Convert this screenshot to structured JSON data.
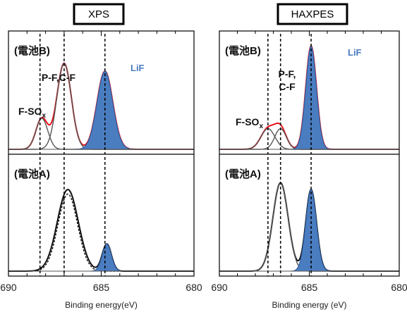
{
  "chart_data": [
    {
      "type": "line",
      "title": "XPS",
      "xlabel": "Binding energy(eV)",
      "x_reversed": true,
      "xlim": [
        690,
        680
      ],
      "xticks": [
        "690",
        "685",
        "680"
      ],
      "panels": [
        {
          "label": "(電池B)",
          "annotations": [
            {
              "text": "P-F,C-F",
              "x": 687.0
            },
            {
              "text": "F-SO",
              "sub": "x",
              "x": 688.0
            },
            {
              "text": "LiF",
              "x": 684.6
            }
          ],
          "series": [
            {
              "kind": "envelope",
              "color": "#e8141b",
              "peaks": [
                [
                  688.2,
                  0.27,
                  0.45
                ],
                [
                  687.0,
                  0.75,
                  0.55
                ],
                [
                  684.8,
                  0.68,
                  0.6
                ]
              ]
            },
            {
              "kind": "component",
              "color": "#555555",
              "peak": [
                688.2,
                0.27,
                0.45
              ]
            },
            {
              "kind": "component",
              "color": "#555555",
              "peak": [
                687.0,
                0.75,
                0.55
              ]
            },
            {
              "kind": "filled",
              "color": "#4a7cc0",
              "peak": [
                684.8,
                0.68,
                0.6
              ]
            }
          ],
          "markers": [
            688.3,
            687.0,
            684.8
          ]
        },
        {
          "label": "(電池A)",
          "annotations": [],
          "series": [
            {
              "kind": "envelope",
              "color": "#111111",
              "peaks": [
                [
                  686.8,
                  0.72,
                  0.8
                ],
                [
                  684.7,
                  0.24,
                  0.35
                ]
              ]
            },
            {
              "kind": "dotted",
              "color": "#111111",
              "peaks": [
                [
                  686.8,
                  0.68,
                  0.75
                ]
              ]
            },
            {
              "kind": "filled",
              "color": "#4a7cc0",
              "peak": [
                684.7,
                0.24,
                0.35
              ]
            }
          ],
          "markers": [
            688.3,
            687.0,
            684.8
          ]
        }
      ]
    },
    {
      "type": "line",
      "title": "HAXPES",
      "xlabel": "Binding energy (eV)",
      "x_reversed": true,
      "xlim": [
        690,
        680
      ],
      "xticks": [
        "690",
        "685",
        "680"
      ],
      "panels": [
        {
          "label": "(電池B)",
          "annotations": [
            {
              "text": "P-F,",
              "x": 687.6
            },
            {
              "text": "C-F",
              "x": 687.6
            },
            {
              "text": "F-SO",
              "sub": "x",
              "x": 688.5
            },
            {
              "text": "LiF",
              "x": 684.0
            }
          ],
          "series": [
            {
              "kind": "envelope",
              "color": "#e8141b",
              "peaks": [
                [
                  687.3,
                  0.18,
                  0.55
                ],
                [
                  686.6,
                  0.18,
                  0.45
                ],
                [
                  684.9,
                  0.9,
                  0.42
                ]
              ]
            },
            {
              "kind": "component",
              "color": "#555555",
              "peak": [
                687.3,
                0.18,
                0.55
              ]
            },
            {
              "kind": "component",
              "color": "#555555",
              "peak": [
                686.6,
                0.18,
                0.45
              ]
            },
            {
              "kind": "filled",
              "color": "#4a7cc0",
              "peak": [
                684.9,
                0.9,
                0.42
              ]
            }
          ],
          "markers": [
            687.3,
            686.6,
            684.9
          ]
        },
        {
          "label": "(電池A)",
          "annotations": [],
          "series": [
            {
              "kind": "envelope",
              "color": "#111111",
              "peaks": [
                [
                  686.6,
                  0.78,
                  0.6
                ],
                [
                  684.9,
                  0.72,
                  0.42
                ]
              ]
            },
            {
              "kind": "component",
              "color": "#555555",
              "peak": [
                686.6,
                0.78,
                0.6
              ]
            },
            {
              "kind": "filled",
              "color": "#4a7cc0",
              "peak": [
                684.9,
                0.72,
                0.42
              ]
            }
          ],
          "markers": [
            687.3,
            686.6,
            684.9
          ]
        }
      ]
    }
  ]
}
